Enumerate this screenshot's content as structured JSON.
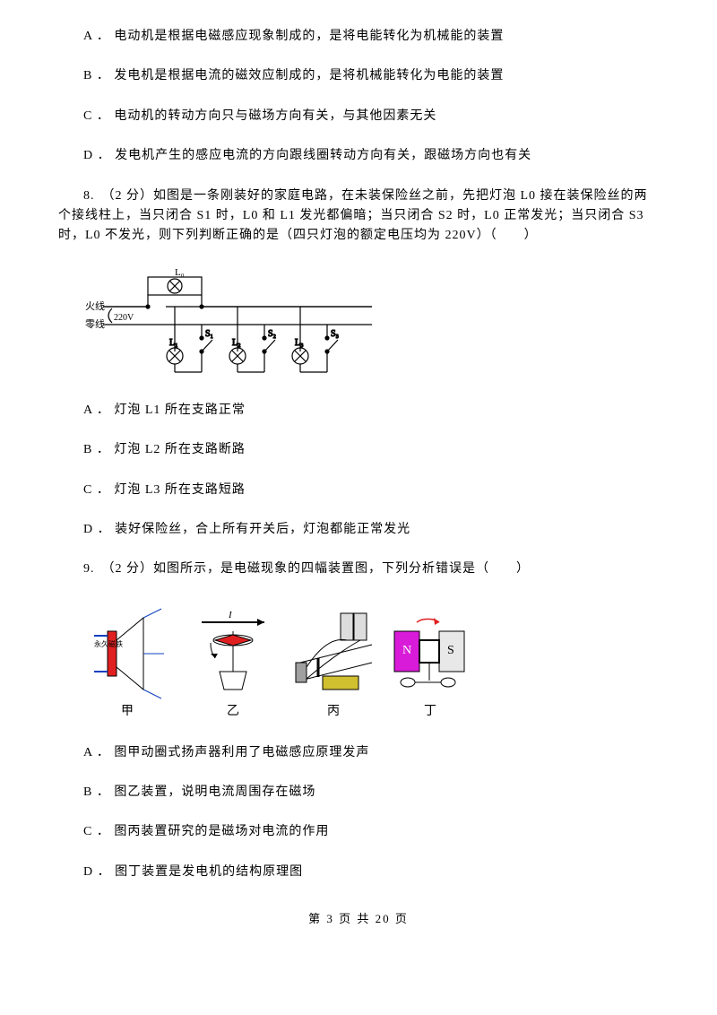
{
  "q7": {
    "A": "A ． 电动机是根据电磁感应现象制成的，是将电能转化为机械能的装置",
    "B": "B ． 发电机是根据电流的磁效应制成的，是将机械能转化为电能的装置",
    "C": "C ． 电动机的转动方向只与磁场方向有关，与其他因素无关",
    "D": "D ． 发电机产生的感应电流的方向跟线圈转动方向有关，跟磁场方向也有关"
  },
  "q8": {
    "stem": "8.　（2 分）如图是一条刚装好的家庭电路，在未装保险丝之前，先把灯泡 L0 接在装保险丝的两个接线柱上，当只闭合 S1 时，L0 和 L1 发光都偏暗；当只闭合 S2 时，L0 正常发光；当只闭合 S3 时，L0 不发光，则下列判断正确的是（四只灯泡的额定电压均为 220V）（　　）",
    "A": "A ． 灯泡 L1 所在支路正常",
    "B": "B ． 灯泡 L2 所在支路断路",
    "C": "C ． 灯泡 L3 所在支路短路",
    "D": "D ． 装好保险丝，合上所有开关后，灯泡都能正常发光",
    "circuit": {
      "voltage": "220V",
      "fire": "火线",
      "neutral": "零线",
      "L0": "L₀",
      "branches": [
        {
          "lamp": "L₁",
          "sw": "S₁"
        },
        {
          "lamp": "L₂",
          "sw": "S₂"
        },
        {
          "lamp": "L₃",
          "sw": "S₃"
        }
      ],
      "line_color": "#000000",
      "bg": "#ffffff"
    }
  },
  "q9": {
    "stem": "9.　（2 分）如图所示，是电磁现象的四幅装置图，下列分析错误是（　　）",
    "A": "A ． 图甲动圈式扬声器利用了电磁感应原理发声",
    "B": "B ． 图乙装置，说明电流周围存在磁场",
    "C": "C ． 图丙装置研究的是磁场对电流的作用",
    "D": "D ． 图丁装置是发电机的结构原理图",
    "labels": [
      "甲",
      "乙",
      "丙",
      "丁"
    ],
    "colors": {
      "magenta": "#d81bd8",
      "red": "#e02020",
      "blue": "#1040c0",
      "gray": "#a0a0a0",
      "black": "#000000",
      "yellow": "#d0c030"
    }
  },
  "footer": "第 3 页 共 20 页"
}
